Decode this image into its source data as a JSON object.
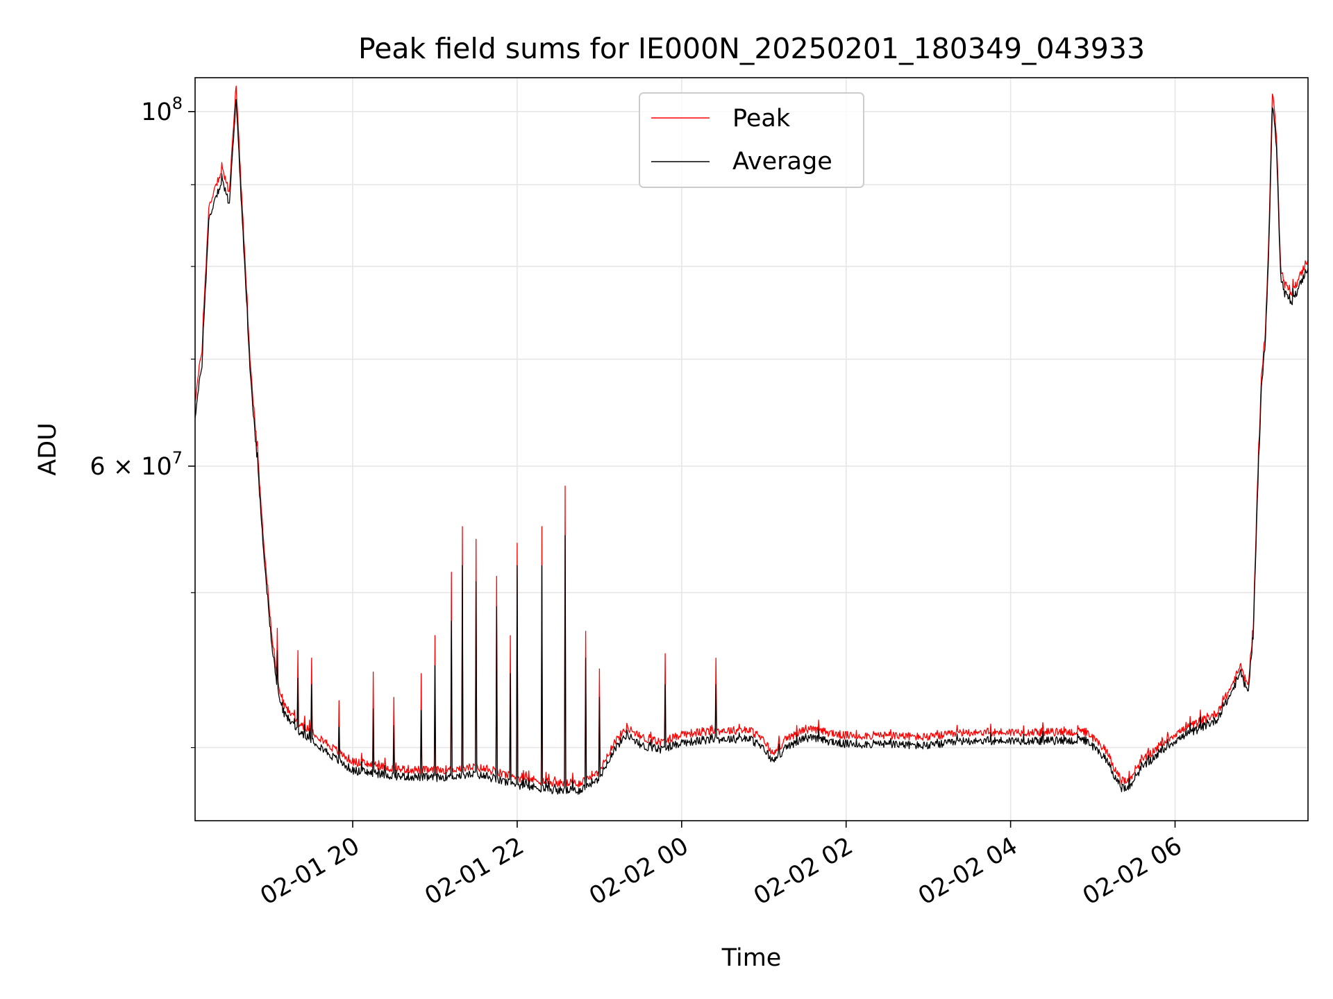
{
  "chart_data": {
    "type": "line",
    "title": "Peak field sums for IE000N_20250201_180349_043933",
    "xlabel": "Time",
    "ylabel": "ADU",
    "y_scale": "log",
    "ylim": [
      36000000,
      105000000
    ],
    "xlim": [
      "2025-02-01 18:05",
      "2025-02-02 07:37"
    ],
    "grid": true,
    "legend_position": "upper center",
    "x_ticks": [
      {
        "t": "2025-02-01 20:00",
        "label": "02-01 20"
      },
      {
        "t": "2025-02-01 22:00",
        "label": "02-01 22"
      },
      {
        "t": "2025-02-02 00:00",
        "label": "02-02 00"
      },
      {
        "t": "2025-02-02 02:00",
        "label": "02-02 02"
      },
      {
        "t": "2025-02-02 04:00",
        "label": "02-02 04"
      },
      {
        "t": "2025-02-02 06:00",
        "label": "02-02 06"
      }
    ],
    "y_major_ticks": [
      {
        "value": 100000000,
        "base": "10",
        "exp": "8"
      },
      {
        "value": 60000000,
        "base": "6 × 10",
        "exp": "7"
      }
    ],
    "y_minor_ticks": [
      40000000,
      50000000,
      70000000,
      80000000,
      90000000
    ],
    "series": [
      {
        "name": "Peak",
        "color": "#ff0000",
        "points": [
          [
            "2025-02-01 18:05",
            66000000
          ],
          [
            "2025-02-01 18:10",
            71000000
          ],
          [
            "2025-02-01 18:15",
            87000000
          ],
          [
            "2025-02-01 18:20",
            90000000
          ],
          [
            "2025-02-01 18:25",
            92000000
          ],
          [
            "2025-02-01 18:30",
            89000000
          ],
          [
            "2025-02-01 18:35",
            104000000
          ],
          [
            "2025-02-01 18:40",
            85000000
          ],
          [
            "2025-02-01 18:45",
            70000000
          ],
          [
            "2025-02-01 18:50",
            62000000
          ],
          [
            "2025-02-01 18:55",
            54000000
          ],
          [
            "2025-02-01 19:00",
            48000000
          ],
          [
            "2025-02-01 19:05",
            44000000
          ],
          [
            "2025-02-01 19:10",
            42500000
          ],
          [
            "2025-02-01 19:20",
            41500000
          ],
          [
            "2025-02-01 19:30",
            41000000
          ],
          [
            "2025-02-01 19:45",
            40000000
          ],
          [
            "2025-02-01 20:00",
            39200000
          ],
          [
            "2025-02-01 20:30",
            38800000
          ],
          [
            "2025-02-01 21:00",
            38700000
          ],
          [
            "2025-02-01 21:30",
            38900000
          ],
          [
            "2025-02-01 22:00",
            38300000
          ],
          [
            "2025-02-01 22:30",
            38000000
          ],
          [
            "2025-02-01 22:45",
            38000000
          ],
          [
            "2025-02-01 23:00",
            38700000
          ],
          [
            "2025-02-01 23:10",
            40200000
          ],
          [
            "2025-02-01 23:20",
            41200000
          ],
          [
            "2025-02-01 23:30",
            40600000
          ],
          [
            "2025-02-01 23:45",
            40300000
          ],
          [
            "2025-02-02 00:00",
            40800000
          ],
          [
            "2025-02-02 00:30",
            41000000
          ],
          [
            "2025-02-02 00:50",
            41000000
          ],
          [
            "2025-02-02 01:00",
            40400000
          ],
          [
            "2025-02-02 01:07",
            39600000
          ],
          [
            "2025-02-02 01:15",
            40400000
          ],
          [
            "2025-02-02 01:30",
            41100000
          ],
          [
            "2025-02-02 02:00",
            40700000
          ],
          [
            "2025-02-02 02:30",
            40700000
          ],
          [
            "2025-02-02 03:00",
            40600000
          ],
          [
            "2025-02-02 03:30",
            40900000
          ],
          [
            "2025-02-02 04:00",
            40900000
          ],
          [
            "2025-02-02 04:30",
            40900000
          ],
          [
            "2025-02-02 04:55",
            40900000
          ],
          [
            "2025-02-02 05:10",
            39800000
          ],
          [
            "2025-02-02 05:20",
            38200000
          ],
          [
            "2025-02-02 05:25",
            38000000
          ],
          [
            "2025-02-02 05:35",
            39200000
          ],
          [
            "2025-02-02 05:50",
            40200000
          ],
          [
            "2025-02-02 06:00",
            40800000
          ],
          [
            "2025-02-02 06:15",
            41400000
          ],
          [
            "2025-02-02 06:30",
            42000000
          ],
          [
            "2025-02-02 06:40",
            43500000
          ],
          [
            "2025-02-02 06:48",
            45000000
          ],
          [
            "2025-02-02 06:53",
            43600000
          ],
          [
            "2025-02-02 06:57",
            47500000
          ],
          [
            "2025-02-02 07:00",
            58000000
          ],
          [
            "2025-02-02 07:03",
            68000000
          ],
          [
            "2025-02-02 07:06",
            73000000
          ],
          [
            "2025-02-02 07:09",
            87000000
          ],
          [
            "2025-02-02 07:11",
            103000000
          ],
          [
            "2025-02-02 07:14",
            97000000
          ],
          [
            "2025-02-02 07:17",
            80000000
          ],
          [
            "2025-02-02 07:20",
            78000000
          ],
          [
            "2025-02-02 07:25",
            77000000
          ],
          [
            "2025-02-02 07:30",
            78500000
          ],
          [
            "2025-02-02 07:37",
            81000000
          ]
        ]
      },
      {
        "name": "Average",
        "color": "#000000",
        "points": [
          [
            "2025-02-01 18:05",
            64500000
          ],
          [
            "2025-02-01 18:10",
            69500000
          ],
          [
            "2025-02-01 18:15",
            85500000
          ],
          [
            "2025-02-01 18:20",
            88500000
          ],
          [
            "2025-02-01 18:25",
            90500000
          ],
          [
            "2025-02-01 18:30",
            87500000
          ],
          [
            "2025-02-01 18:35",
            102000000
          ],
          [
            "2025-02-01 18:40",
            83500000
          ],
          [
            "2025-02-01 18:45",
            69000000
          ],
          [
            "2025-02-01 18:50",
            61000000
          ],
          [
            "2025-02-01 18:55",
            53200000
          ],
          [
            "2025-02-01 19:00",
            47300000
          ],
          [
            "2025-02-01 19:05",
            43500000
          ],
          [
            "2025-02-01 19:10",
            42000000
          ],
          [
            "2025-02-01 19:20",
            41000000
          ],
          [
            "2025-02-01 19:30",
            40500000
          ],
          [
            "2025-02-01 19:45",
            39500000
          ],
          [
            "2025-02-01 20:00",
            38700000
          ],
          [
            "2025-02-01 20:30",
            38400000
          ],
          [
            "2025-02-01 21:00",
            38300000
          ],
          [
            "2025-02-01 21:30",
            38500000
          ],
          [
            "2025-02-01 22:00",
            37900000
          ],
          [
            "2025-02-01 22:30",
            37600000
          ],
          [
            "2025-02-01 22:45",
            37600000
          ],
          [
            "2025-02-01 23:00",
            38300000
          ],
          [
            "2025-02-01 23:10",
            39800000
          ],
          [
            "2025-02-01 23:20",
            40800000
          ],
          [
            "2025-02-01 23:30",
            40100000
          ],
          [
            "2025-02-01 23:45",
            39900000
          ],
          [
            "2025-02-02 00:00",
            40300000
          ],
          [
            "2025-02-02 00:30",
            40500000
          ],
          [
            "2025-02-02 00:50",
            40500000
          ],
          [
            "2025-02-02 01:00",
            39900000
          ],
          [
            "2025-02-02 01:07",
            39200000
          ],
          [
            "2025-02-02 01:15",
            39900000
          ],
          [
            "2025-02-02 01:30",
            40600000
          ],
          [
            "2025-02-02 02:00",
            40200000
          ],
          [
            "2025-02-02 02:30",
            40200000
          ],
          [
            "2025-02-02 03:00",
            40100000
          ],
          [
            "2025-02-02 03:30",
            40400000
          ],
          [
            "2025-02-02 04:00",
            40400000
          ],
          [
            "2025-02-02 04:30",
            40400000
          ],
          [
            "2025-02-02 04:55",
            40400000
          ],
          [
            "2025-02-02 05:10",
            39300000
          ],
          [
            "2025-02-02 05:20",
            37800000
          ],
          [
            "2025-02-02 05:25",
            37600000
          ],
          [
            "2025-02-02 05:35",
            38800000
          ],
          [
            "2025-02-02 05:50",
            39800000
          ],
          [
            "2025-02-02 06:00",
            40400000
          ],
          [
            "2025-02-02 06:15",
            41000000
          ],
          [
            "2025-02-02 06:30",
            41600000
          ],
          [
            "2025-02-02 06:40",
            43100000
          ],
          [
            "2025-02-02 06:48",
            44600000
          ],
          [
            "2025-02-02 06:53",
            43200000
          ],
          [
            "2025-02-02 06:57",
            47000000
          ],
          [
            "2025-02-02 07:00",
            57000000
          ],
          [
            "2025-02-02 07:03",
            67000000
          ],
          [
            "2025-02-02 07:06",
            72000000
          ],
          [
            "2025-02-02 07:09",
            85500000
          ],
          [
            "2025-02-02 07:11",
            101000000
          ],
          [
            "2025-02-02 07:14",
            95500000
          ],
          [
            "2025-02-02 07:17",
            79000000
          ],
          [
            "2025-02-02 07:20",
            77000000
          ],
          [
            "2025-02-02 07:25",
            76000000
          ],
          [
            "2025-02-02 07:30",
            77500000
          ],
          [
            "2025-02-02 07:37",
            80000000
          ]
        ]
      }
    ],
    "spikes": [
      {
        "t": "2025-02-01 19:05",
        "peak": 47500000,
        "average": 46000000
      },
      {
        "t": "2025-02-01 19:20",
        "peak": 46000000,
        "average": 44200000
      },
      {
        "t": "2025-02-01 19:30",
        "peak": 45500000,
        "average": 43800000
      },
      {
        "t": "2025-02-01 19:50",
        "peak": 42800000,
        "average": 41200000
      },
      {
        "t": "2025-02-01 20:15",
        "peak": 44600000,
        "average": 42300000
      },
      {
        "t": "2025-02-01 20:30",
        "peak": 43000000,
        "average": 41300000
      },
      {
        "t": "2025-02-01 20:50",
        "peak": 44500000,
        "average": 42200000
      },
      {
        "t": "2025-02-01 21:00",
        "peak": 47000000,
        "average": 45000000
      },
      {
        "t": "2025-02-01 21:12",
        "peak": 51500000,
        "average": 48000000
      },
      {
        "t": "2025-02-01 21:20",
        "peak": 55000000,
        "average": 52000000
      },
      {
        "t": "2025-02-01 21:30",
        "peak": 54000000,
        "average": 50800000
      },
      {
        "t": "2025-02-01 21:45",
        "peak": 51200000,
        "average": 49000000
      },
      {
        "t": "2025-02-01 21:55",
        "peak": 47000000,
        "average": 44500000
      },
      {
        "t": "2025-02-01 22:00",
        "peak": 53700000,
        "average": 52000000
      },
      {
        "t": "2025-02-01 22:18",
        "peak": 55000000,
        "average": 52000000
      },
      {
        "t": "2025-02-01 22:35",
        "peak": 58300000,
        "average": 54300000
      },
      {
        "t": "2025-02-01 22:50",
        "peak": 47300000,
        "average": 45500000
      },
      {
        "t": "2025-02-01 23:00",
        "peak": 44800000,
        "average": 43000000
      },
      {
        "t": "2025-02-01 23:48",
        "peak": 45800000,
        "average": 43800000
      },
      {
        "t": "2025-02-02 00:25",
        "peak": 45500000,
        "average": 43800000
      }
    ]
  }
}
